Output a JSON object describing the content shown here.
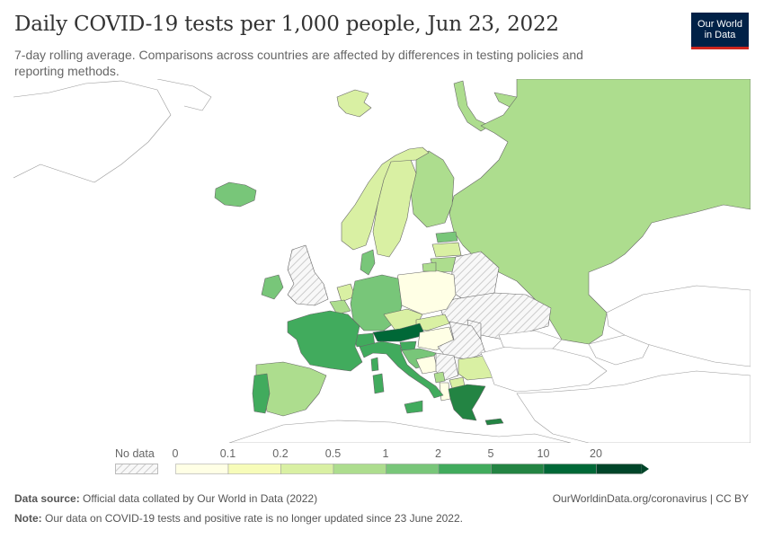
{
  "header": {
    "title": "Daily COVID-19 tests per 1,000 people, Jun 23, 2022",
    "subtitle": "7-day rolling average. Comparisons across countries are affected by differences in testing policies and reporting methods."
  },
  "logo": {
    "line1": "Our World",
    "line2": "in Data",
    "bg": "#002147",
    "accent": "#ce261e"
  },
  "legend": {
    "no_data_label": "No data",
    "bins": [
      "0",
      "0.1",
      "0.2",
      "0.5",
      "1",
      "2",
      "5",
      "10",
      "20"
    ],
    "colors": [
      "#ffffe5",
      "#f7fcb9",
      "#d9f0a3",
      "#addd8e",
      "#78c679",
      "#41ab5d",
      "#238443",
      "#006837",
      "#004529"
    ]
  },
  "footer": {
    "source_label": "Data source:",
    "source_text": "Official data collated by Our World in Data (2022)",
    "url_text": "OurWorldinData.org/coronavirus | CC BY",
    "note_label": "Note:",
    "note_text": "Our data on COVID-19 tests and positive rate is no longer updated since 23 June 2022."
  }
}
